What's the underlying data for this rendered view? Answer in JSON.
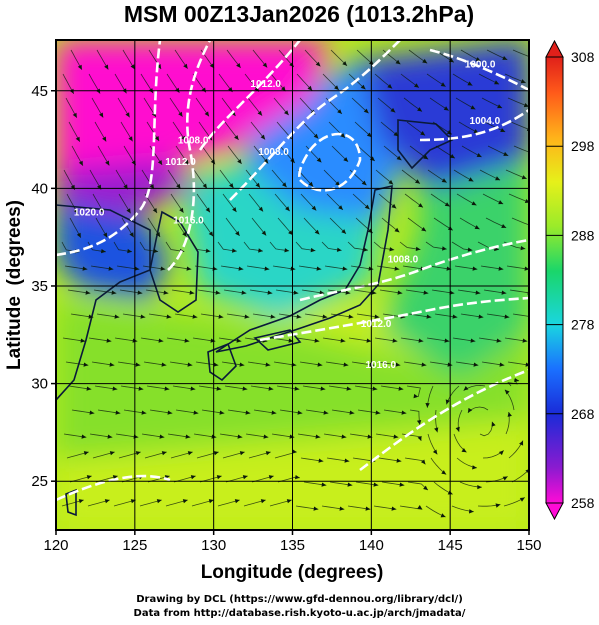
{
  "chart_data": {
    "type": "heatmap",
    "title": "MSM 00Z13Jan2026 (1013.2hPa)",
    "xlabel": "Longitude (degrees)",
    "ylabel": "Latitude  (degrees)",
    "xlim": [
      120,
      150
    ],
    "ylim": [
      22.5,
      47.6
    ],
    "xticks": [
      120,
      125,
      130,
      135,
      140,
      145,
      150
    ],
    "yticks": [
      25,
      30,
      35,
      40,
      45
    ],
    "grid": true,
    "colorbar": {
      "ticks": [
        258,
        268,
        278,
        288,
        298,
        308
      ],
      "range": [
        258,
        308
      ]
    },
    "contour_labels": [
      {
        "text": "1020.0",
        "lon": 122.1,
        "lat": 38.6
      },
      {
        "text": "1016.0",
        "lon": 128.4,
        "lat": 38.2
      },
      {
        "text": "1012.0",
        "lon": 127.9,
        "lat": 41.2
      },
      {
        "text": "1008.0",
        "lon": 128.7,
        "lat": 42.3
      },
      {
        "text": "1012.0",
        "lon": 133.3,
        "lat": 45.2
      },
      {
        "text": "1008.0",
        "lon": 133.8,
        "lat": 41.7
      },
      {
        "text": "1000.0",
        "lon": 146.9,
        "lat": 46.2
      },
      {
        "text": "1004.0",
        "lon": 147.2,
        "lat": 43.3
      },
      {
        "text": "1008.0",
        "lon": 142.0,
        "lat": 36.2
      },
      {
        "text": "1012.0",
        "lon": 140.3,
        "lat": 32.9
      },
      {
        "text": "1016.0",
        "lon": 140.6,
        "lat": 30.8
      }
    ],
    "temperature_field_K": [
      {
        "region": "northeast China / Russia",
        "value": 258
      },
      {
        "region": "Korea",
        "value": 270
      },
      {
        "region": "Sea of Japan",
        "value": 279
      },
      {
        "region": "Hokkaido",
        "value": 266
      },
      {
        "region": "East China Sea",
        "value": 291
      },
      {
        "region": "south Pacific",
        "value": 295
      }
    ]
  },
  "credits": [
    "Drawing by DCL (https://www.gfd-dennou.org/library/dcl/)",
    "Data from http://database.rish.kyoto-u.ac.jp/arch/jmadata/"
  ]
}
